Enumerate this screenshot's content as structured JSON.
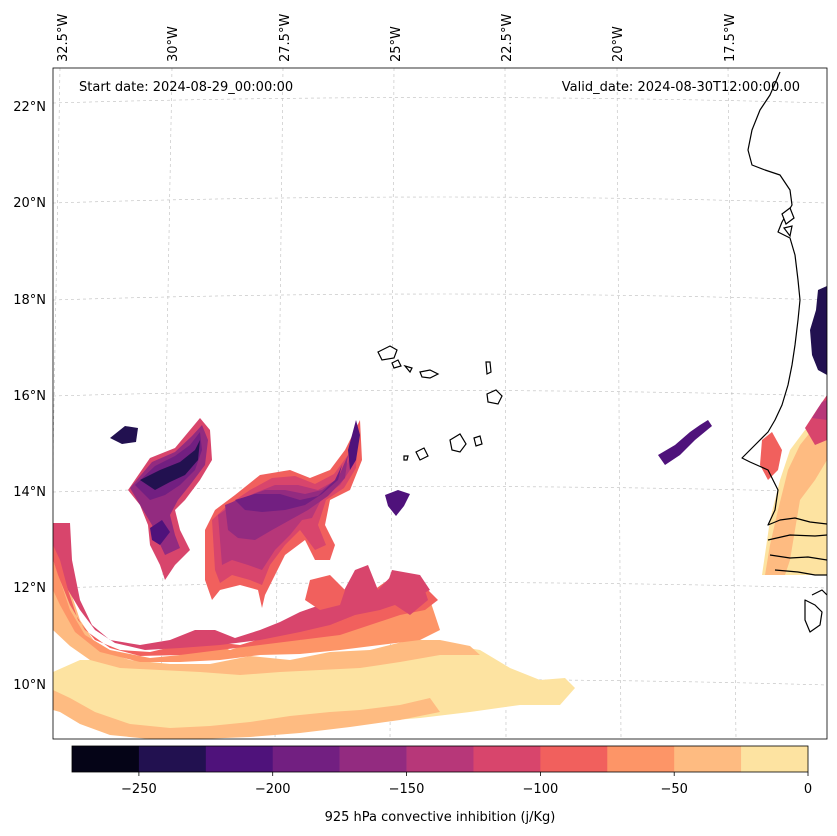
{
  "info": {
    "start_date": "Start date: 2024-08-29_00:00:00",
    "valid_date": "Valid_date: 2024-08-30T12:00:00.00"
  },
  "lon_labels": [
    "32.5°W",
    "30°W",
    "27.5°W",
    "25°W",
    "22.5°W",
    "20°W",
    "17.5°W"
  ],
  "lat_labels": [
    "22°N",
    "20°N",
    "18°N",
    "16°N",
    "14°N",
    "12°N",
    "10°N"
  ],
  "colorbar": {
    "title": "925 hPa convective inhibition (j/Kg)",
    "tick_labels": [
      "−250",
      "−200",
      "−150",
      "−100",
      "−50",
      "0"
    ],
    "levels": [
      -275,
      -250,
      -225,
      -200,
      -175,
      -150,
      -125,
      -100,
      -75,
      -50,
      -25,
      0
    ],
    "colors": [
      "#050417",
      "#221150",
      "#4f127b",
      "#721f81",
      "#932b80",
      "#b73779",
      "#d8456c",
      "#f1605d",
      "#fd9567",
      "#febb81",
      "#fde3a1"
    ]
  },
  "colormap": "magma"
}
